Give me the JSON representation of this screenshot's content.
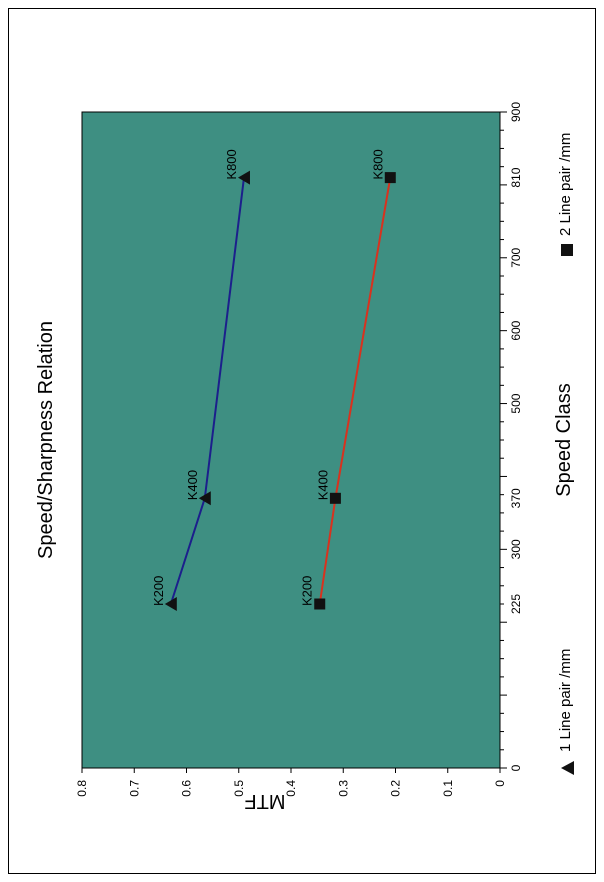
{
  "chart_data": {
    "type": "line",
    "orientation": "rotated-90-ccw",
    "title": "Speed/Sharpness Relation",
    "xlabel": "Speed Class",
    "ylabel": "MTF",
    "xlim": [
      0,
      900
    ],
    "ylim": [
      0,
      0.8
    ],
    "x_ticks": [
      "0",
      "225",
      "300",
      "370",
      "500",
      "600",
      "700",
      "810",
      "900"
    ],
    "x_tick_values": [
      0,
      225,
      300,
      370,
      500,
      600,
      700,
      810,
      900
    ],
    "y_ticks": [
      "0",
      "0.1",
      "0.2",
      "0.3",
      "0.4",
      "0.5",
      "0.6",
      "0.7",
      "0.8"
    ],
    "y_tick_values": [
      0,
      0.1,
      0.2,
      0.3,
      0.4,
      0.5,
      0.6,
      0.7,
      0.8
    ],
    "grid": false,
    "legend_position": "bottom",
    "series": [
      {
        "name": "1 Line pair /mm",
        "marker": "triangle",
        "color": "#1c1f8c",
        "x": [
          225,
          370,
          810
        ],
        "y": [
          0.63,
          0.565,
          0.49
        ],
        "labels": [
          "K200",
          "K400",
          "K800"
        ]
      },
      {
        "name": "2 Line pair /mm",
        "marker": "square",
        "color": "#d8321e",
        "x": [
          225,
          370,
          810
        ],
        "y": [
          0.345,
          0.315,
          0.21
        ],
        "labels": [
          "K200",
          "K400",
          "K800"
        ]
      }
    ]
  },
  "colors": {
    "plot_background": "#3e8f82",
    "frame": "#000000",
    "marker": "#111111"
  }
}
